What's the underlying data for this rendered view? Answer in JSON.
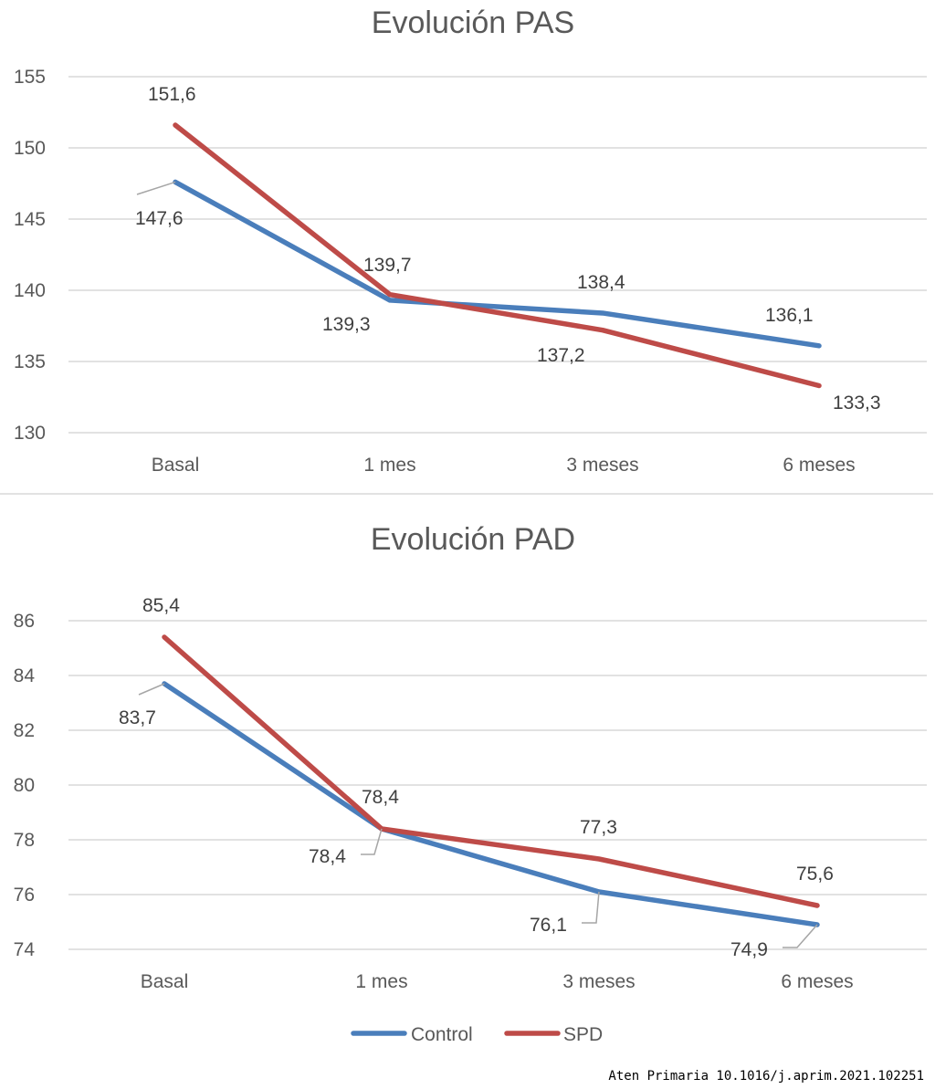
{
  "chart_data": [
    {
      "type": "line",
      "title": "Evolución PAS",
      "categories": [
        "Basal",
        "1 mes",
        "3 meses",
        "6 meses"
      ],
      "ylim": [
        130,
        155
      ],
      "yticks": [
        130,
        135,
        140,
        145,
        150,
        155
      ],
      "grid": true,
      "series": [
        {
          "name": "Control",
          "color": "#4a7ebb",
          "values": [
            147.6,
            139.3,
            138.4,
            136.1
          ],
          "labels": [
            "147,6",
            "139,3",
            "138,4",
            "136,1"
          ]
        },
        {
          "name": "SPD",
          "color": "#be4b48",
          "values": [
            151.6,
            139.7,
            137.2,
            133.3
          ],
          "labels": [
            "151,6",
            "139,7",
            "137,2",
            "133,3"
          ]
        }
      ]
    },
    {
      "type": "line",
      "title": "Evolución PAD",
      "categories": [
        "Basal",
        "1 mes",
        "3 meses",
        "6 meses"
      ],
      "ylim": [
        74,
        86
      ],
      "yticks": [
        74,
        76,
        78,
        80,
        82,
        84,
        86
      ],
      "grid": true,
      "legend": "bottom",
      "series": [
        {
          "name": "Control",
          "color": "#4a7ebb",
          "values": [
            83.7,
            78.4,
            76.1,
            74.9
          ],
          "labels": [
            "83,7",
            "78,4",
            "76,1",
            "74,9"
          ]
        },
        {
          "name": "SPD",
          "color": "#be4b48",
          "values": [
            85.4,
            78.4,
            77.3,
            75.6
          ],
          "labels": [
            "85,4",
            "78,4",
            "77,3",
            "75,6"
          ]
        }
      ]
    }
  ],
  "legend": {
    "items": [
      {
        "name": "Control",
        "color": "#4a7ebb"
      },
      {
        "name": "SPD",
        "color": "#be4b48"
      }
    ]
  },
  "credit": "Aten Primaria 10.1016/j.aprim.2021.102251"
}
